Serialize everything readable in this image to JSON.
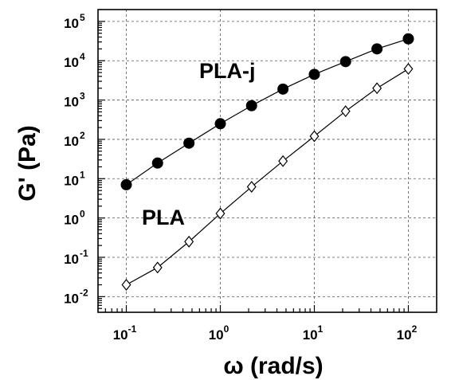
{
  "chart_data": {
    "type": "line",
    "title": "",
    "xlabel": "ω (rad/s)",
    "ylabel": "G' (Pa)",
    "xscale": "log",
    "yscale": "log",
    "xlim": [
      0.05,
      200
    ],
    "ylim": [
      0.004,
      200000
    ],
    "grid": true,
    "x_ticks": [
      {
        "value": 0.1,
        "base": "10",
        "exp": "-1"
      },
      {
        "value": 1,
        "base": "10",
        "exp": "0"
      },
      {
        "value": 10,
        "base": "10",
        "exp": "1"
      },
      {
        "value": 100,
        "base": "10",
        "exp": "2"
      }
    ],
    "y_ticks": [
      {
        "value": 0.01,
        "base": "10",
        "exp": "-2"
      },
      {
        "value": 0.1,
        "base": "10",
        "exp": "-1"
      },
      {
        "value": 1,
        "base": "10",
        "exp": "0"
      },
      {
        "value": 10,
        "base": "10",
        "exp": "1"
      },
      {
        "value": 100,
        "base": "10",
        "exp": "2"
      },
      {
        "value": 1000,
        "base": "10",
        "exp": "3"
      },
      {
        "value": 10000,
        "base": "10",
        "exp": "4"
      },
      {
        "value": 100000,
        "base": "10",
        "exp": "5"
      }
    ],
    "series": [
      {
        "name": "PLA-j",
        "marker": "filled-circle",
        "color": "#000000",
        "x": [
          0.1,
          0.215,
          0.464,
          1,
          2.15,
          4.64,
          10,
          21.5,
          46.4,
          100
        ],
        "y": [
          7,
          25,
          80,
          250,
          720,
          1900,
          4500,
          9500,
          20000,
          36000
        ]
      },
      {
        "name": "PLA",
        "marker": "open-diamond",
        "color": "#000000",
        "x": [
          0.1,
          0.215,
          0.464,
          1,
          2.15,
          4.64,
          10,
          21.5,
          46.4,
          100
        ],
        "y": [
          0.02,
          0.055,
          0.25,
          1.3,
          6.2,
          28,
          120,
          520,
          2000,
          6200
        ]
      }
    ]
  }
}
